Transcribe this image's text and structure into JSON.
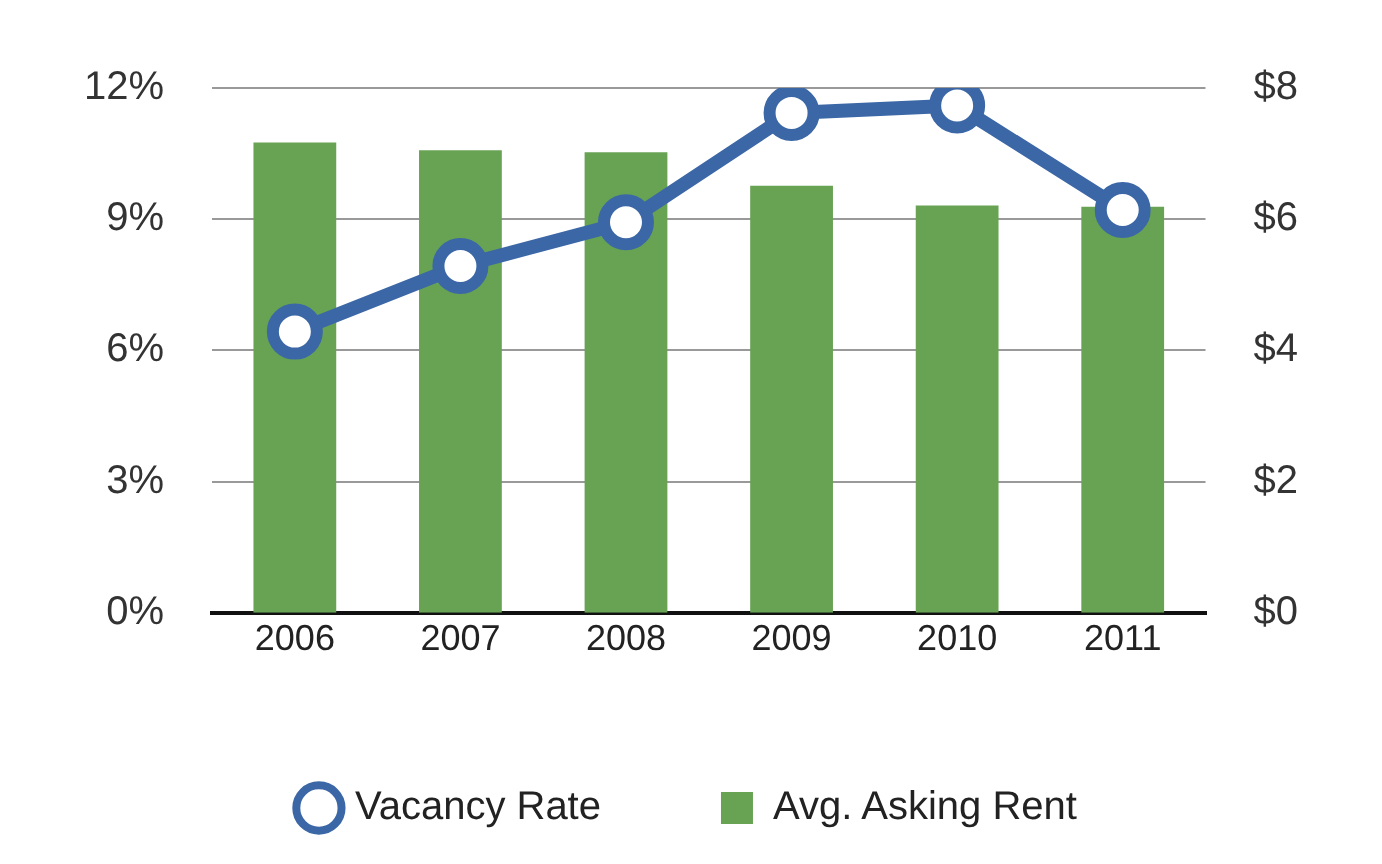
{
  "chart_data": {
    "type": "bar",
    "categories": [
      "2006",
      "2007",
      "2008",
      "2009",
      "2010",
      "2011"
    ],
    "series": [
      {
        "name": "Vacancy Rate",
        "type": "line",
        "color": "#3b67a6",
        "values": [
          6.43,
          7.93,
          8.93,
          11.43,
          11.6,
          9.21
        ]
      },
      {
        "name": "Avg. Asking Rent",
        "axis": "y2",
        "color": "#68a354",
        "values": [
          7.17,
          7.05,
          7.02,
          6.51,
          6.21,
          6.19
        ]
      }
    ],
    "ylim": [
      0,
      12
    ],
    "yticks": [
      {
        "value": 0,
        "label": "0%"
      },
      {
        "value": 3,
        "label": "3%"
      },
      {
        "value": 6,
        "label": "6%"
      },
      {
        "value": 9,
        "label": "9%"
      },
      {
        "value": 12,
        "label": "12%"
      }
    ],
    "y2lim": [
      0,
      8
    ],
    "y2ticks": [
      {
        "value": 0,
        "label": "$0"
      },
      {
        "value": 2,
        "label": "$2"
      },
      {
        "value": 4,
        "label": "$4"
      },
      {
        "value": 6,
        "label": "$6"
      },
      {
        "value": 8,
        "label": "$8"
      }
    ],
    "grid": "y",
    "legend": "bottom",
    "marker": "circle",
    "line_style": "solid"
  }
}
